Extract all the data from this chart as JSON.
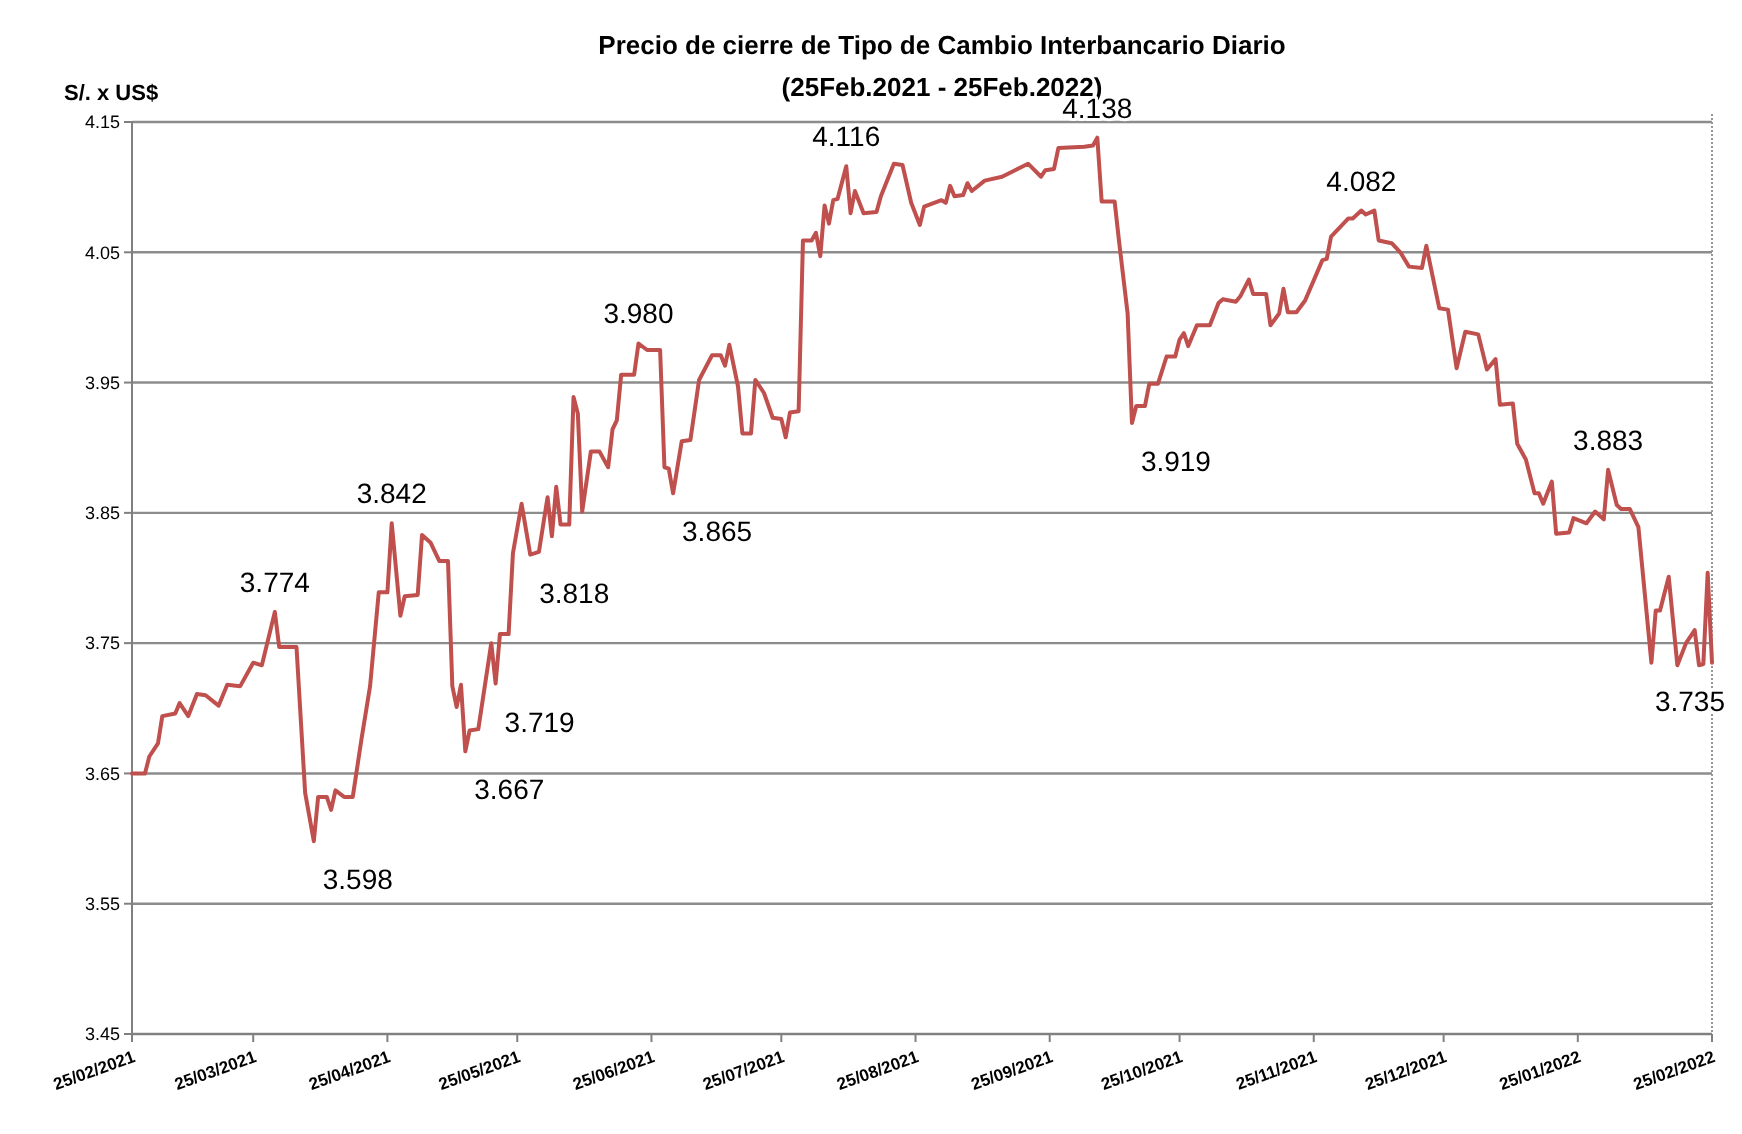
{
  "chart_data": {
    "type": "line",
    "title": "Precio de cierre de Tipo de Cambio Interbancario Diario",
    "subtitle": "(25Feb.2021 - 25Feb.2022)",
    "ylabel": "S/. x US$",
    "x": [
      "2021-02-25",
      "2021-02-28",
      "2021-03-01",
      "2021-03-03",
      "2021-03-04",
      "2021-03-07",
      "2021-03-08",
      "2021-03-10",
      "2021-03-12",
      "2021-03-14",
      "2021-03-17",
      "2021-03-19",
      "2021-03-22",
      "2021-03-25",
      "2021-03-27",
      "2021-03-30",
      "2021-03-31",
      "2021-04-04",
      "2021-04-06",
      "2021-04-08",
      "2021-04-09",
      "2021-04-11",
      "2021-04-12",
      "2021-04-13",
      "2021-04-15",
      "2021-04-17",
      "2021-04-19",
      "2021-04-21",
      "2021-04-23",
      "2021-04-25",
      "2021-04-26",
      "2021-04-28",
      "2021-04-29",
      "2021-05-02",
      "2021-05-03",
      "2021-05-05",
      "2021-05-07",
      "2021-05-09",
      "2021-05-10",
      "2021-05-11",
      "2021-05-12",
      "2021-05-13",
      "2021-05-14",
      "2021-05-16",
      "2021-05-19",
      "2021-05-20",
      "2021-05-21",
      "2021-05-23",
      "2021-05-24",
      "2021-05-26",
      "2021-05-28",
      "2021-05-30",
      "2021-06-01",
      "2021-06-02",
      "2021-06-03",
      "2021-06-04",
      "2021-06-06",
      "2021-06-07",
      "2021-06-08",
      "2021-06-09",
      "2021-06-11",
      "2021-06-13",
      "2021-06-15",
      "2021-06-16",
      "2021-06-17",
      "2021-06-18",
      "2021-06-21",
      "2021-06-22",
      "2021-06-24",
      "2021-06-27",
      "2021-06-28",
      "2021-06-29",
      "2021-06-30",
      "2021-07-02",
      "2021-07-04",
      "2021-07-06",
      "2021-07-09",
      "2021-07-11",
      "2021-07-12",
      "2021-07-13",
      "2021-07-15",
      "2021-07-16",
      "2021-07-18",
      "2021-07-19",
      "2021-07-21",
      "2021-07-23",
      "2021-07-25",
      "2021-07-26",
      "2021-07-27",
      "2021-07-29",
      "2021-07-30",
      "2021-08-01",
      "2021-08-02",
      "2021-08-03",
      "2021-08-04",
      "2021-08-05",
      "2021-08-06",
      "2021-08-07",
      "2021-08-09",
      "2021-08-10",
      "2021-08-11",
      "2021-08-13",
      "2021-08-16",
      "2021-08-17",
      "2021-08-20",
      "2021-08-22",
      "2021-08-24",
      "2021-08-26",
      "2021-08-27",
      "2021-08-31",
      "2021-09-01",
      "2021-09-02",
      "2021-09-03",
      "2021-09-05",
      "2021-09-06",
      "2021-09-07",
      "2021-09-10",
      "2021-09-14",
      "2021-09-17",
      "2021-09-20",
      "2021-09-23",
      "2021-09-24",
      "2021-09-26",
      "2021-09-27",
      "2021-10-03",
      "2021-10-05",
      "2021-10-06",
      "2021-10-07",
      "2021-10-10",
      "2021-10-11",
      "2021-10-13",
      "2021-10-14",
      "2021-10-15",
      "2021-10-17",
      "2021-10-18",
      "2021-10-20",
      "2021-10-22",
      "2021-10-24",
      "2021-10-25",
      "2021-10-26",
      "2021-10-27",
      "2021-10-29",
      "2021-11-01",
      "2021-11-03",
      "2021-11-04",
      "2021-11-07",
      "2021-11-08",
      "2021-11-10",
      "2021-11-11",
      "2021-11-14",
      "2021-11-15",
      "2021-11-17",
      "2021-11-18",
      "2021-11-19",
      "2021-11-21",
      "2021-11-23",
      "2021-11-27",
      "2021-11-28",
      "2021-11-29",
      "2021-12-03",
      "2021-12-04",
      "2021-12-06",
      "2021-12-07",
      "2021-12-09",
      "2021-12-10",
      "2021-12-13",
      "2021-12-15",
      "2021-12-17",
      "2021-12-20",
      "2021-12-21",
      "2021-12-24",
      "2021-12-26",
      "2021-12-28",
      "2021-12-30",
      "2022-01-02",
      "2022-01-04",
      "2022-01-06",
      "2022-01-07",
      "2022-01-10",
      "2022-01-11",
      "2022-01-13",
      "2022-01-15",
      "2022-01-16",
      "2022-01-17",
      "2022-01-19",
      "2022-01-20",
      "2022-01-23",
      "2022-01-24",
      "2022-01-27",
      "2022-01-29",
      "2022-01-31",
      "2022-02-01",
      "2022-02-03",
      "2022-02-04",
      "2022-02-06",
      "2022-02-08",
      "2022-02-11",
      "2022-02-12",
      "2022-02-13",
      "2022-02-15",
      "2022-02-17",
      "2022-02-19",
      "2022-02-21",
      "2022-02-22",
      "2022-02-23",
      "2022-02-24",
      "2022-02-25"
    ],
    "series": [
      {
        "color": "#c0504d",
        "values": [
          3.65,
          3.65,
          3.663,
          3.673,
          3.694,
          3.696,
          3.704,
          3.694,
          3.711,
          3.71,
          3.702,
          3.718,
          3.717,
          3.735,
          3.733,
          3.774,
          3.747,
          3.747,
          3.635,
          3.598,
          3.632,
          3.632,
          3.622,
          3.637,
          3.632,
          3.632,
          3.676,
          3.717,
          3.789,
          3.789,
          3.842,
          3.771,
          3.786,
          3.787,
          3.833,
          3.827,
          3.813,
          3.813,
          3.717,
          3.701,
          3.718,
          3.667,
          3.683,
          3.684,
          3.75,
          3.719,
          3.757,
          3.757,
          3.819,
          3.857,
          3.818,
          3.82,
          3.862,
          3.832,
          3.87,
          3.841,
          3.841,
          3.939,
          3.926,
          3.851,
          3.897,
          3.897,
          3.885,
          3.914,
          3.921,
          3.956,
          3.956,
          3.98,
          3.975,
          3.975,
          3.885,
          3.884,
          3.865,
          3.905,
          3.906,
          3.952,
          3.971,
          3.971,
          3.963,
          3.979,
          3.947,
          3.911,
          3.911,
          3.952,
          3.942,
          3.923,
          3.922,
          3.908,
          3.927,
          3.928,
          4.059,
          4.059,
          4.065,
          4.047,
          4.086,
          4.072,
          4.09,
          4.091,
          4.116,
          4.08,
          4.097,
          4.08,
          4.081,
          4.093,
          4.118,
          4.117,
          4.088,
          4.071,
          4.085,
          4.09,
          4.088,
          4.101,
          4.093,
          4.094,
          4.103,
          4.097,
          4.105,
          4.108,
          4.113,
          4.118,
          4.108,
          4.113,
          4.114,
          4.13,
          4.131,
          4.132,
          4.138,
          4.089,
          4.089,
          4.059,
          4.003,
          3.919,
          3.932,
          3.932,
          3.949,
          3.949,
          3.97,
          3.97,
          3.983,
          3.988,
          3.978,
          3.994,
          3.994,
          4.011,
          4.014,
          4.012,
          4.016,
          4.029,
          4.018,
          4.018,
          3.994,
          4.003,
          4.022,
          4.004,
          4.004,
          4.013,
          4.044,
          4.045,
          4.062,
          4.076,
          4.076,
          4.082,
          4.079,
          4.082,
          4.059,
          4.057,
          4.05,
          4.039,
          4.038,
          4.055,
          4.007,
          4.006,
          3.961,
          3.989,
          3.987,
          3.96,
          3.968,
          3.933,
          3.934,
          3.903,
          3.891,
          3.865,
          3.865,
          3.857,
          3.874,
          3.834,
          3.835,
          3.846,
          3.842,
          3.851,
          3.845,
          3.883,
          3.856,
          3.853,
          3.853,
          3.839,
          3.735,
          3.775,
          3.775,
          3.801,
          3.733,
          3.75,
          3.76,
          3.733,
          3.734,
          3.804,
          3.735
        ]
      }
    ],
    "xlim": [
      "2021-02-25",
      "2022-02-25"
    ],
    "xticks": [
      {
        "value": "2021-02-25",
        "label": "25/02/2021"
      },
      {
        "value": "2021-03-25",
        "label": "25/03/2021"
      },
      {
        "value": "2021-04-25",
        "label": "25/04/2021"
      },
      {
        "value": "2021-05-25",
        "label": "25/05/2021"
      },
      {
        "value": "2021-06-25",
        "label": "25/06/2021"
      },
      {
        "value": "2021-07-25",
        "label": "25/07/2021"
      },
      {
        "value": "2021-08-25",
        "label": "25/08/2021"
      },
      {
        "value": "2021-09-25",
        "label": "25/09/2021"
      },
      {
        "value": "2021-10-25",
        "label": "25/10/2021"
      },
      {
        "value": "2021-11-25",
        "label": "25/11/2021"
      },
      {
        "value": "2021-12-25",
        "label": "25/12/2021"
      },
      {
        "value": "2022-01-25",
        "label": "25/01/2022"
      },
      {
        "value": "2022-02-25",
        "label": "25/02/2022"
      }
    ],
    "ylim": [
      3.45,
      4.15
    ],
    "yticks": [
      3.45,
      3.55,
      3.65,
      3.75,
      3.85,
      3.95,
      4.05,
      4.15
    ],
    "grid": "y",
    "marker": "none",
    "line_style": "solid",
    "annotations": [
      {
        "text": "3.774",
        "x": "2021-03-30",
        "y": 3.774
      },
      {
        "text": "3.598",
        "x": "2021-04-08",
        "y": 3.598
      },
      {
        "text": "3.842",
        "x": "2021-04-26",
        "y": 3.842
      },
      {
        "text": "3.667",
        "x": "2021-05-13",
        "y": 3.667
      },
      {
        "text": "3.719",
        "x": "2021-05-20",
        "y": 3.719
      },
      {
        "text": "3.818",
        "x": "2021-05-28",
        "y": 3.818
      },
      {
        "text": "3.980",
        "x": "2021-06-22",
        "y": 3.98
      },
      {
        "text": "3.865",
        "x": "2021-06-30",
        "y": 3.865
      },
      {
        "text": "4.116",
        "x": "2021-08-09",
        "y": 4.116
      },
      {
        "text": "4.138",
        "x": "2021-10-06",
        "y": 4.138
      },
      {
        "text": "3.919",
        "x": "2021-10-14",
        "y": 3.919
      },
      {
        "text": "4.082",
        "x": "2021-12-06",
        "y": 4.082
      },
      {
        "text": "3.883",
        "x": "2022-02-01",
        "y": 3.883
      },
      {
        "text": "3.735",
        "x": "2022-02-25",
        "y": 3.735
      }
    ]
  }
}
